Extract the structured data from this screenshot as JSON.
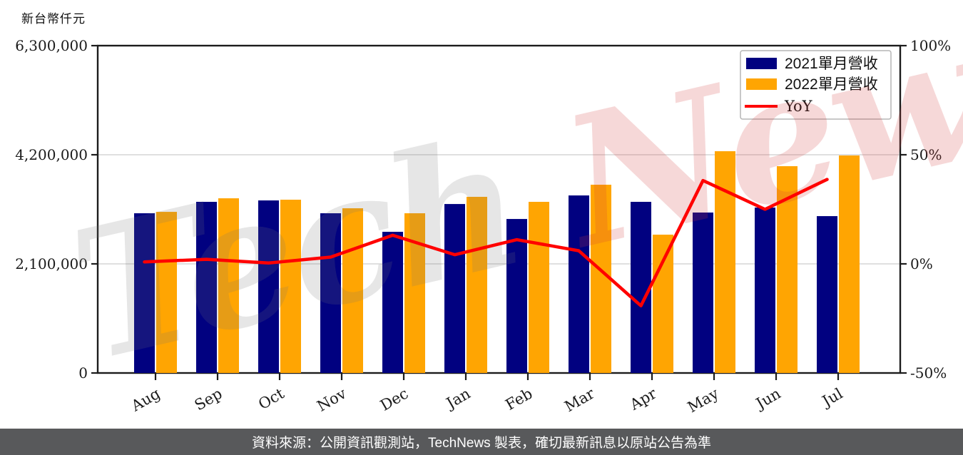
{
  "unit_label": "新台幣仟元",
  "watermark": {
    "part1": "Tech",
    "part2": "News"
  },
  "legend": {
    "items": [
      {
        "label": "2021單月營收",
        "swatch": "navy-rect"
      },
      {
        "label": "2022單月營收",
        "swatch": "orange-rect"
      },
      {
        "label": "YoY",
        "swatch": "red-line"
      }
    ]
  },
  "footer": {
    "text": "資料來源：公開資訊觀測站，TechNews 製表，確切最新訊息以原站公告為準"
  },
  "colors": {
    "bar_2021": "#010180",
    "bar_2022": "#ffa502",
    "yoy_line": "#ff0000",
    "grid": "#d6d6d6",
    "axis": "#1c1c1c",
    "footer_bg": "#58595b",
    "watermark_gray": "#777777",
    "watermark_red": "#d43c3c"
  },
  "chart_data": {
    "type": "bar",
    "title": "",
    "categories": [
      "Aug",
      "Sep",
      "Oct",
      "Nov",
      "Dec",
      "Jan",
      "Feb",
      "Mar",
      "Apr",
      "May",
      "Jun",
      "Jul"
    ],
    "series": [
      {
        "name": "2021單月營收",
        "type": "bar",
        "axis": "left",
        "values": [
          3074000,
          3294000,
          3321000,
          3074000,
          2717000,
          3252000,
          2964000,
          3417000,
          3294000,
          3088000,
          3184000,
          3019000
        ]
      },
      {
        "name": "2022單月營收",
        "type": "bar",
        "axis": "left",
        "values": [
          3101000,
          3362000,
          3335000,
          3170000,
          3074000,
          3390000,
          3294000,
          3623000,
          2662000,
          4268000,
          3980000,
          4186000
        ]
      },
      {
        "name": "YoY",
        "type": "line",
        "axis": "right",
        "values": [
          0.9,
          2.1,
          0.4,
          3.1,
          13.1,
          4.2,
          11.1,
          6.0,
          -19.2,
          38.2,
          25.0,
          38.7
        ]
      }
    ],
    "left_axis": {
      "label": "新台幣仟元",
      "min": 0,
      "max": 6300000,
      "tick_values": [
        0,
        2100000,
        4200000,
        6300000
      ],
      "tick_labels": [
        "0",
        "2,100,000",
        "4,200,000",
        "6,300,000"
      ]
    },
    "right_axis": {
      "label": "",
      "min": -50,
      "max": 100,
      "tick_values": [
        -50,
        0,
        50,
        100
      ],
      "tick_labels": [
        "-50%",
        "0%",
        "50%",
        "100%"
      ]
    },
    "grid": true,
    "legend_position": "top-right"
  }
}
